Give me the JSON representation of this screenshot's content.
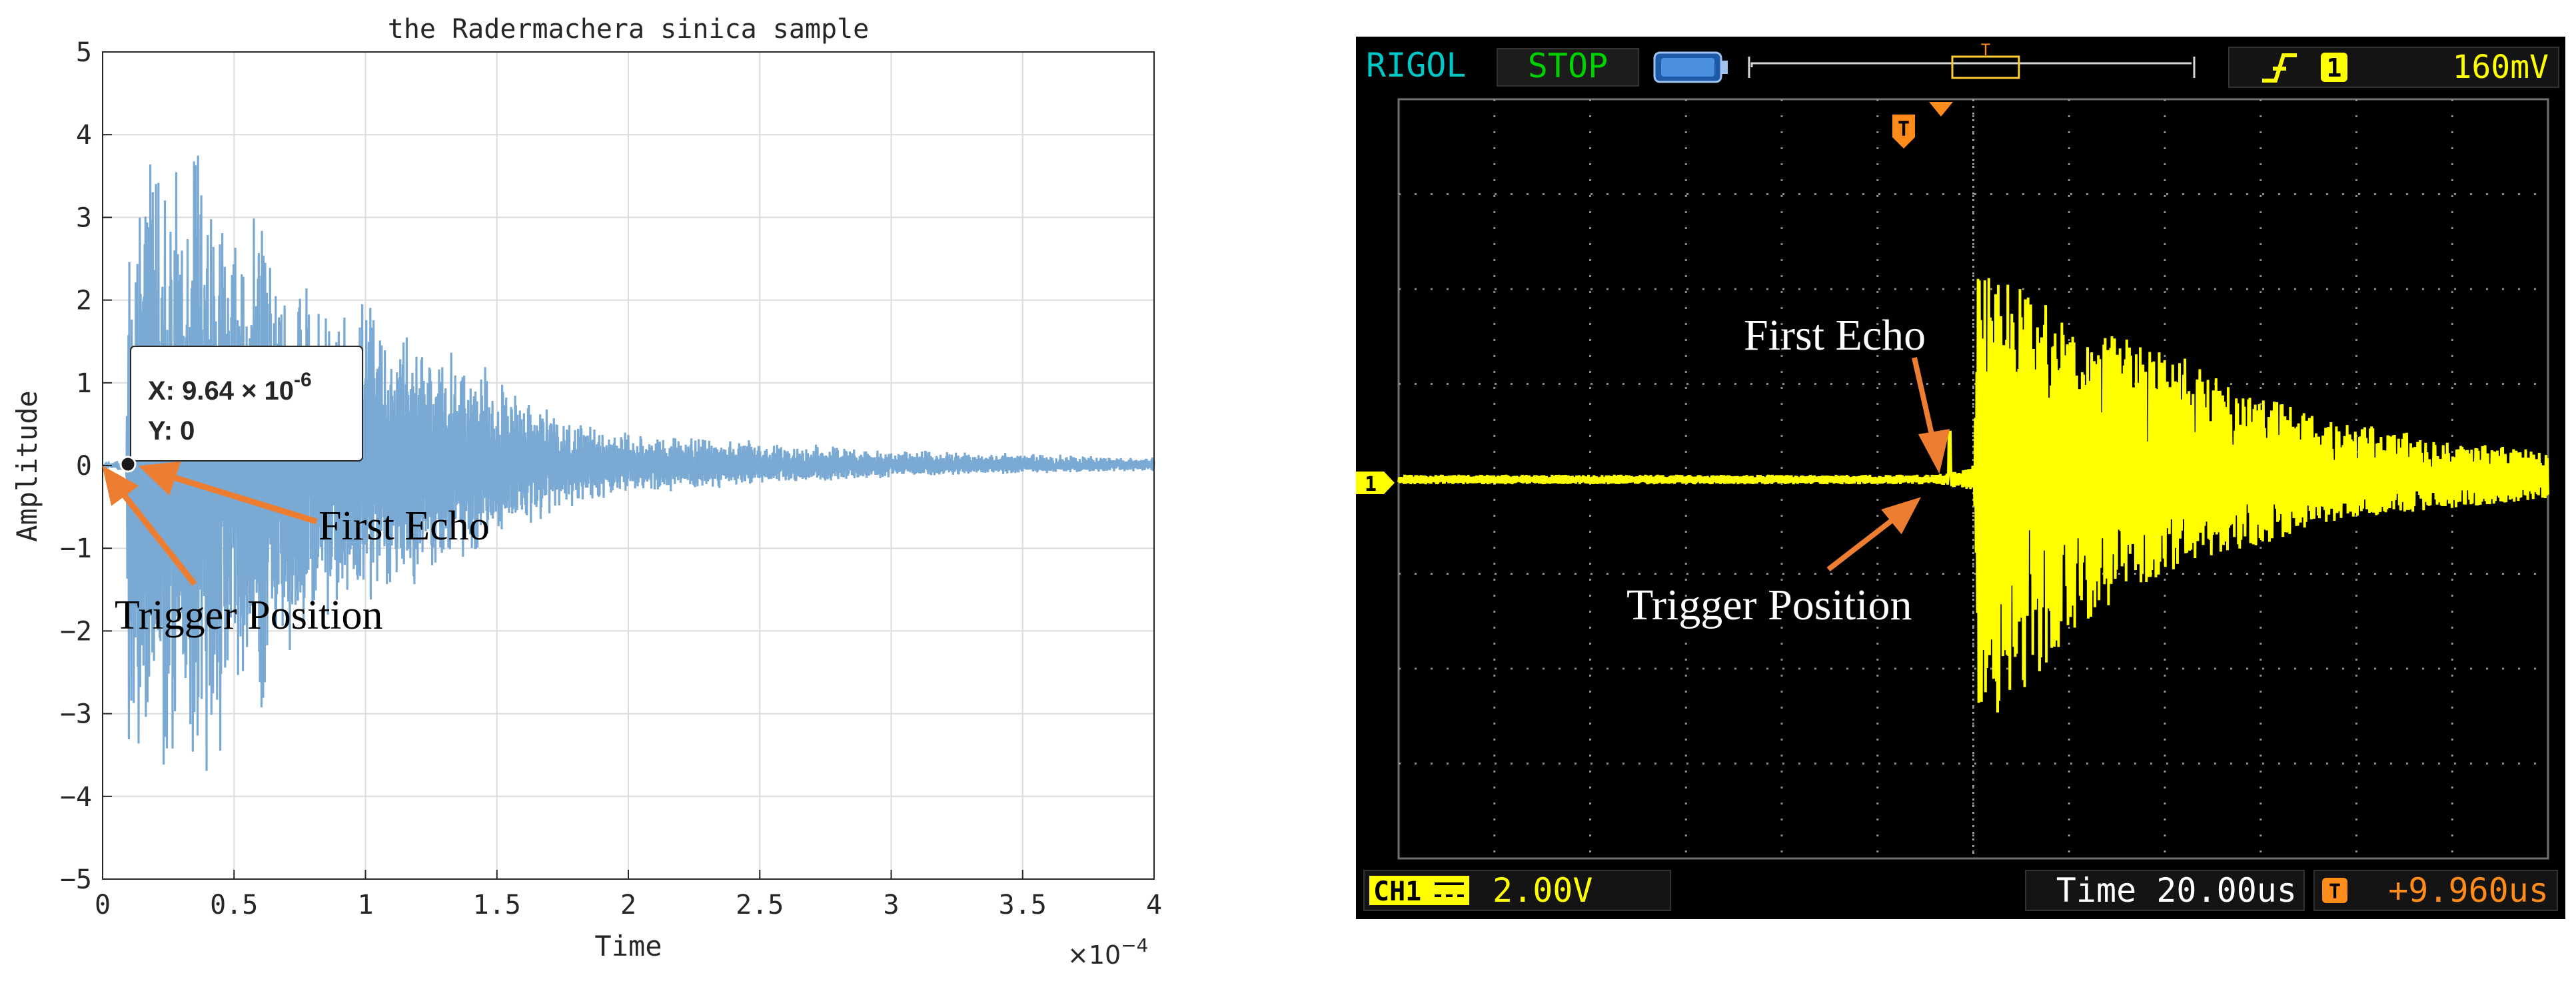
{
  "matlab": {
    "title": "the Radermachera sinica sample",
    "xlabel": "Time",
    "ylabel": "Amplitude",
    "x_multiplier": "×10",
    "x_multiplier_exp": "−4",
    "datatip": {
      "x_label": "X: 9.64 × 10",
      "x_exp": "-6",
      "y_label": "Y: 0"
    },
    "annotations": {
      "first_echo": "First Echo",
      "trigger_position": "Trigger Position"
    },
    "colors": {
      "signal": "#7aaad3",
      "arrow": "#ed7d31",
      "grid": "#dcdcdc",
      "axis": "#262626"
    }
  },
  "scope": {
    "brand": "RIGOL",
    "run_state": "STOP",
    "trigger_channel": "1",
    "trigger_level": "160mV",
    "channel_label": "CH1",
    "channel_scale": "2.00V",
    "timebase": "Time 20.00us",
    "trigger_offset": "+9.960us",
    "trigger_marker": "T",
    "ground_marker": "1",
    "annotations": {
      "first_echo": "First Echo",
      "trigger_position": "Trigger Position"
    },
    "colors": {
      "background": "#000000",
      "trace": "#ffff00",
      "brand": "#00c8c8",
      "stop": "#00d000",
      "accent": "#ff8c1a",
      "arrow": "#ed7d31"
    }
  },
  "chart_data": [
    {
      "type": "line",
      "title": "the Radermachera sinica sample",
      "xlabel": "Time",
      "ylabel": "Amplitude",
      "xlim": [
        0,
        0.0004
      ],
      "ylim": [
        -5,
        5
      ],
      "x_ticks": [
        0,
        5e-05,
        0.0001,
        0.00015,
        0.0002,
        0.00025,
        0.0003,
        0.00035,
        0.0004
      ],
      "x_tick_labels": [
        "0",
        "0.5",
        "1",
        "1.5",
        "2",
        "2.5",
        "3",
        "3.5",
        "4"
      ],
      "y_ticks": [
        -5,
        -4,
        -3,
        -2,
        -1,
        0,
        1,
        2,
        3,
        4,
        5
      ],
      "y_tick_labels": [
        "−5",
        "−4",
        "−3",
        "−2",
        "−1",
        "0",
        "1",
        "2",
        "3",
        "4",
        "5"
      ],
      "grid": true,
      "envelope": {
        "x": [
          0,
          9e-06,
          1e-05,
          2e-05,
          3e-05,
          4e-05,
          5e-05,
          6e-05,
          7e-05,
          8e-05,
          0.0001,
          0.00012,
          0.00014,
          0.00016,
          0.00018,
          0.0002,
          0.00025,
          0.0003,
          0.00035,
          0.0004
        ],
        "y_max": [
          0,
          0.1,
          4.1,
          4.2,
          4.1,
          3.9,
          3.5,
          3.2,
          2.8,
          2.4,
          2.1,
          1.7,
          1.4,
          0.9,
          0.6,
          0.4,
          0.3,
          0.2,
          0.15,
          0.1
        ],
        "y_min": [
          0,
          -0.1,
          -3.8,
          -4.1,
          -4.1,
          -4.1,
          -3.4,
          -3.2,
          -2.6,
          -2.2,
          -1.8,
          -1.6,
          -1.2,
          -0.8,
          -0.5,
          -0.35,
          -0.25,
          -0.15,
          -0.1,
          -0.07
        ]
      },
      "datatip_point": {
        "x": 9.64e-06,
        "y": 0
      }
    },
    {
      "type": "line",
      "timebase_per_div_us": 20,
      "volts_per_div": 2,
      "trigger_offset_us": 9.96,
      "trigger_level_mV": 160,
      "divisions_x": 12,
      "divisions_y": 8,
      "envelope": {
        "x_div": [
          0,
          5.6,
          5.9,
          6.0,
          6.05,
          6.3,
          6.6,
          7.0,
          7.5,
          8.0,
          8.5,
          9.0,
          9.5,
          10.0,
          10.5,
          11.0,
          11.5,
          12.0
        ],
        "y_max_div": [
          0.05,
          0.05,
          0.1,
          0.15,
          2.2,
          2.2,
          2.0,
          1.6,
          1.5,
          1.4,
          1.1,
          0.9,
          0.7,
          0.6,
          0.5,
          0.4,
          0.35,
          0.3
        ],
        "y_min_div": [
          -0.05,
          -0.05,
          -0.1,
          -0.15,
          -2.5,
          -2.5,
          -2.2,
          -1.6,
          -1.3,
          -1.0,
          -0.8,
          -0.7,
          -0.5,
          -0.4,
          -0.35,
          -0.3,
          -0.25,
          -0.2
        ]
      }
    }
  ]
}
